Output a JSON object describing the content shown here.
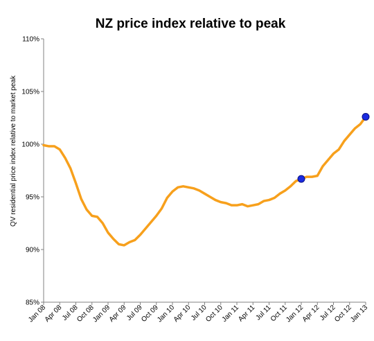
{
  "chart_data": {
    "type": "line",
    "title": "NZ price index relative to peak",
    "xlabel": "",
    "ylabel": "QV residential price index relative to market peak",
    "ylim": [
      85,
      110
    ],
    "y_ticks": [
      "85%",
      "90%",
      "95%",
      "100%",
      "105%",
      "110%"
    ],
    "x_ticks": [
      "Jan 08",
      "Apr 08",
      "Jul 08",
      "Oct 08",
      "Jan 09",
      "Apr 09",
      "Jul 09",
      "Oct 09",
      "Jan 10",
      "Apr 10",
      "Jul 10",
      "Oct 10",
      "Jan 11",
      "Apr 11",
      "Jul 11",
      "Oct 11",
      "Jan 12",
      "Apr 12",
      "Jul 12",
      "Oct 12",
      "Jan 13"
    ],
    "grid": false,
    "legend": "none",
    "line_color": "#F7A01C",
    "marker_color": "#1A2BE0",
    "series": [
      {
        "x": [
          0,
          1,
          2,
          3,
          4,
          5,
          6,
          7,
          8,
          9,
          10,
          11,
          12,
          13,
          14,
          15,
          16,
          17,
          18,
          19,
          20,
          21,
          22,
          23,
          24,
          25,
          26,
          27,
          28,
          29,
          30,
          31,
          32,
          33,
          34,
          35,
          36,
          37,
          38,
          39,
          40,
          41,
          42,
          43,
          44,
          45,
          46,
          47,
          48,
          49,
          50,
          51,
          52,
          53,
          54,
          55,
          56,
          57,
          58,
          59,
          60
        ],
        "values": [
          99.9,
          99.8,
          99.8,
          99.5,
          98.7,
          97.7,
          96.3,
          94.8,
          93.8,
          93.2,
          93.1,
          92.5,
          91.6,
          91.0,
          90.5,
          90.4,
          90.7,
          90.9,
          91.4,
          92.0,
          92.6,
          93.2,
          93.9,
          94.9,
          95.5,
          95.9,
          96.0,
          95.9,
          95.8,
          95.6,
          95.3,
          95.0,
          94.7,
          94.5,
          94.4,
          94.2,
          94.2,
          94.3,
          94.1,
          94.2,
          94.3,
          94.6,
          94.7,
          94.9,
          95.3,
          95.6,
          96.0,
          96.5,
          96.7,
          96.9,
          96.9,
          97.0,
          97.9,
          98.5,
          99.1,
          99.5,
          100.3,
          100.9,
          101.5,
          101.9,
          102.6
        ]
      }
    ],
    "highlighted_points": [
      {
        "x": 48,
        "value": 96.7
      },
      {
        "x": 60,
        "value": 102.6
      }
    ]
  }
}
